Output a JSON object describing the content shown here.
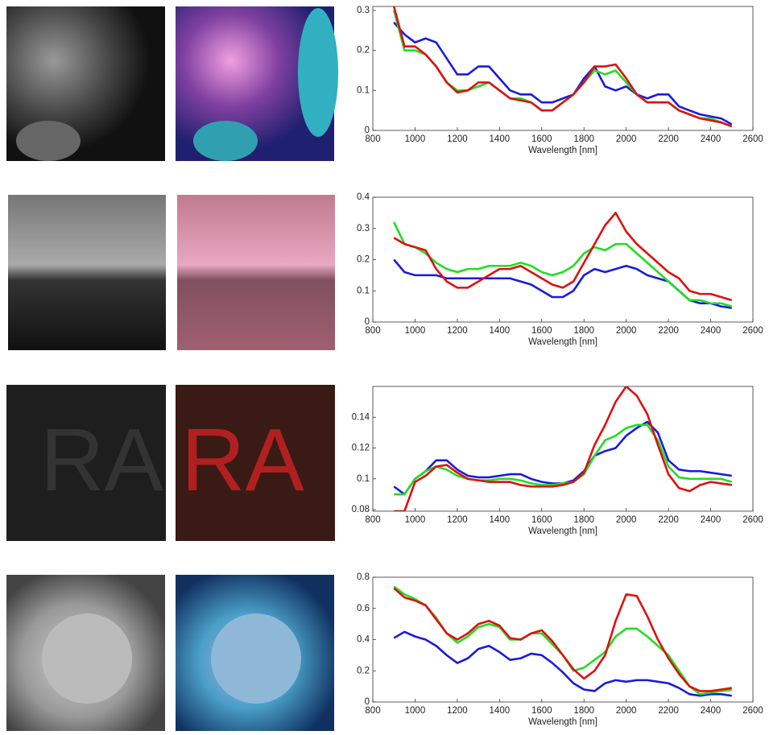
{
  "chart_data": [
    {
      "type": "line",
      "xlabel": "Wavelength [nm]",
      "xlim": [
        800,
        2600
      ],
      "xticks": [
        800,
        1000,
        1200,
        1400,
        1600,
        1800,
        2000,
        2200,
        2400,
        2600
      ],
      "ylim": [
        0,
        0.31
      ],
      "yticks": [
        0,
        0.1,
        0.2,
        0.3
      ],
      "x": [
        900,
        950,
        1000,
        1050,
        1100,
        1150,
        1200,
        1250,
        1300,
        1350,
        1400,
        1450,
        1500,
        1550,
        1600,
        1650,
        1700,
        1750,
        1800,
        1850,
        1900,
        1950,
        2000,
        2050,
        2100,
        2150,
        2200,
        2250,
        2300,
        2350,
        2400,
        2450,
        2500
      ],
      "series": [
        {
          "color": "#1a1ae0",
          "values": [
            0.27,
            0.24,
            0.22,
            0.23,
            0.22,
            0.18,
            0.14,
            0.14,
            0.16,
            0.16,
            0.13,
            0.1,
            0.09,
            0.09,
            0.07,
            0.07,
            0.08,
            0.09,
            0.13,
            0.16,
            0.11,
            0.1,
            0.11,
            0.09,
            0.08,
            0.09,
            0.09,
            0.06,
            0.05,
            0.04,
            0.035,
            0.03,
            0.015
          ]
        },
        {
          "color": "#22dd22",
          "values": [
            0.3,
            0.2,
            0.2,
            0.19,
            0.16,
            0.12,
            0.1,
            0.1,
            0.11,
            0.12,
            0.1,
            0.08,
            0.08,
            0.07,
            0.05,
            0.05,
            0.07,
            0.09,
            0.12,
            0.15,
            0.14,
            0.15,
            0.12,
            0.09,
            0.07,
            0.07,
            0.07,
            0.05,
            0.04,
            0.03,
            0.03,
            0.02,
            0.01
          ]
        },
        {
          "color": "#e01010",
          "values": [
            0.31,
            0.21,
            0.21,
            0.19,
            0.16,
            0.12,
            0.095,
            0.1,
            0.12,
            0.12,
            0.1,
            0.08,
            0.075,
            0.07,
            0.05,
            0.05,
            0.07,
            0.09,
            0.12,
            0.16,
            0.16,
            0.165,
            0.13,
            0.09,
            0.07,
            0.07,
            0.07,
            0.05,
            0.04,
            0.03,
            0.025,
            0.02,
            0.01
          ]
        }
      ]
    },
    {
      "type": "line",
      "xlabel": "Wavelength [nm]",
      "xlim": [
        800,
        2600
      ],
      "xticks": [
        800,
        1000,
        1200,
        1400,
        1600,
        1800,
        2000,
        2200,
        2400,
        2600
      ],
      "ylim": [
        0,
        0.4
      ],
      "yticks": [
        0,
        0.1,
        0.2,
        0.3,
        0.4
      ],
      "x": [
        900,
        950,
        1000,
        1050,
        1100,
        1150,
        1200,
        1250,
        1300,
        1350,
        1400,
        1450,
        1500,
        1550,
        1600,
        1650,
        1700,
        1750,
        1800,
        1850,
        1900,
        1950,
        2000,
        2050,
        2100,
        2150,
        2200,
        2250,
        2300,
        2350,
        2400,
        2450,
        2500
      ],
      "series": [
        {
          "color": "#1a1ae0",
          "values": [
            0.2,
            0.16,
            0.15,
            0.15,
            0.15,
            0.14,
            0.14,
            0.14,
            0.14,
            0.14,
            0.14,
            0.14,
            0.13,
            0.12,
            0.1,
            0.08,
            0.08,
            0.1,
            0.15,
            0.17,
            0.16,
            0.17,
            0.18,
            0.17,
            0.15,
            0.14,
            0.13,
            0.1,
            0.07,
            0.06,
            0.06,
            0.05,
            0.045
          ]
        },
        {
          "color": "#22dd22",
          "values": [
            0.32,
            0.25,
            0.24,
            0.22,
            0.19,
            0.17,
            0.16,
            0.17,
            0.17,
            0.18,
            0.18,
            0.18,
            0.19,
            0.18,
            0.16,
            0.15,
            0.16,
            0.18,
            0.22,
            0.24,
            0.23,
            0.25,
            0.25,
            0.22,
            0.19,
            0.16,
            0.13,
            0.1,
            0.07,
            0.07,
            0.06,
            0.06,
            0.05
          ]
        },
        {
          "color": "#e01010",
          "values": [
            0.27,
            0.25,
            0.24,
            0.23,
            0.17,
            0.13,
            0.11,
            0.11,
            0.13,
            0.15,
            0.17,
            0.17,
            0.18,
            0.16,
            0.14,
            0.12,
            0.11,
            0.13,
            0.19,
            0.25,
            0.31,
            0.35,
            0.29,
            0.25,
            0.22,
            0.19,
            0.16,
            0.14,
            0.1,
            0.09,
            0.09,
            0.08,
            0.07
          ]
        }
      ]
    },
    {
      "type": "line",
      "xlabel": "Wavelength [nm]",
      "xlim": [
        800,
        2600
      ],
      "xticks": [
        800,
        1000,
        1200,
        1400,
        1600,
        1800,
        2000,
        2200,
        2400,
        2600
      ],
      "ylim": [
        0.079,
        0.16
      ],
      "yticks": [
        0.08,
        0.1,
        0.12,
        0.14
      ],
      "x": [
        900,
        950,
        1000,
        1050,
        1100,
        1150,
        1200,
        1250,
        1300,
        1350,
        1400,
        1450,
        1500,
        1550,
        1600,
        1650,
        1700,
        1750,
        1800,
        1850,
        1900,
        1950,
        2000,
        2050,
        2100,
        2150,
        2200,
        2250,
        2300,
        2350,
        2400,
        2450,
        2500
      ],
      "series": [
        {
          "color": "#1a1ae0",
          "values": [
            0.095,
            0.09,
            0.1,
            0.105,
            0.112,
            0.112,
            0.106,
            0.102,
            0.101,
            0.101,
            0.102,
            0.103,
            0.103,
            0.1,
            0.098,
            0.097,
            0.097,
            0.099,
            0.105,
            0.115,
            0.118,
            0.12,
            0.128,
            0.133,
            0.137,
            0.13,
            0.112,
            0.106,
            0.105,
            0.105,
            0.104,
            0.103,
            0.102
          ]
        },
        {
          "color": "#22dd22",
          "values": [
            0.09,
            0.09,
            0.1,
            0.105,
            0.108,
            0.106,
            0.102,
            0.1,
            0.099,
            0.099,
            0.1,
            0.1,
            0.099,
            0.097,
            0.096,
            0.096,
            0.097,
            0.098,
            0.103,
            0.115,
            0.125,
            0.128,
            0.133,
            0.135,
            0.135,
            0.125,
            0.108,
            0.101,
            0.1,
            0.1,
            0.1,
            0.1,
            0.098
          ]
        },
        {
          "color": "#e01010",
          "values": [
            0.079,
            0.079,
            0.098,
            0.102,
            0.108,
            0.109,
            0.104,
            0.1,
            0.099,
            0.098,
            0.098,
            0.098,
            0.096,
            0.095,
            0.095,
            0.095,
            0.096,
            0.098,
            0.104,
            0.122,
            0.135,
            0.15,
            0.16,
            0.154,
            0.142,
            0.122,
            0.103,
            0.094,
            0.092,
            0.096,
            0.098,
            0.097,
            0.096
          ]
        }
      ]
    },
    {
      "type": "line",
      "xlabel": "Wavelength [nm]",
      "xlim": [
        800,
        2600
      ],
      "xticks": [
        800,
        1000,
        1200,
        1400,
        1600,
        1800,
        2000,
        2200,
        2400,
        2600
      ],
      "ylim": [
        0,
        0.8
      ],
      "yticks": [
        0,
        0.2,
        0.4,
        0.6,
        0.8
      ],
      "x": [
        900,
        950,
        1000,
        1050,
        1100,
        1150,
        1200,
        1250,
        1300,
        1350,
        1400,
        1450,
        1500,
        1550,
        1600,
        1650,
        1700,
        1750,
        1800,
        1850,
        1900,
        1950,
        2000,
        2050,
        2100,
        2150,
        2200,
        2250,
        2300,
        2350,
        2400,
        2450,
        2500
      ],
      "series": [
        {
          "color": "#1a1ae0",
          "values": [
            0.41,
            0.45,
            0.42,
            0.4,
            0.36,
            0.3,
            0.25,
            0.28,
            0.34,
            0.36,
            0.32,
            0.27,
            0.28,
            0.31,
            0.3,
            0.25,
            0.19,
            0.12,
            0.08,
            0.07,
            0.12,
            0.14,
            0.13,
            0.14,
            0.14,
            0.13,
            0.12,
            0.09,
            0.05,
            0.04,
            0.05,
            0.05,
            0.04
          ]
        },
        {
          "color": "#22dd22",
          "values": [
            0.74,
            0.69,
            0.66,
            0.62,
            0.54,
            0.44,
            0.38,
            0.42,
            0.48,
            0.5,
            0.48,
            0.4,
            0.4,
            0.44,
            0.44,
            0.37,
            0.3,
            0.2,
            0.22,
            0.27,
            0.32,
            0.42,
            0.47,
            0.47,
            0.42,
            0.36,
            0.3,
            0.2,
            0.1,
            0.05,
            0.06,
            0.07,
            0.08
          ]
        },
        {
          "color": "#e01010",
          "values": [
            0.73,
            0.67,
            0.65,
            0.62,
            0.53,
            0.44,
            0.4,
            0.44,
            0.5,
            0.52,
            0.49,
            0.41,
            0.4,
            0.44,
            0.46,
            0.39,
            0.3,
            0.21,
            0.15,
            0.2,
            0.3,
            0.52,
            0.69,
            0.68,
            0.55,
            0.4,
            0.28,
            0.18,
            0.1,
            0.07,
            0.07,
            0.08,
            0.09
          ]
        }
      ]
    }
  ]
}
